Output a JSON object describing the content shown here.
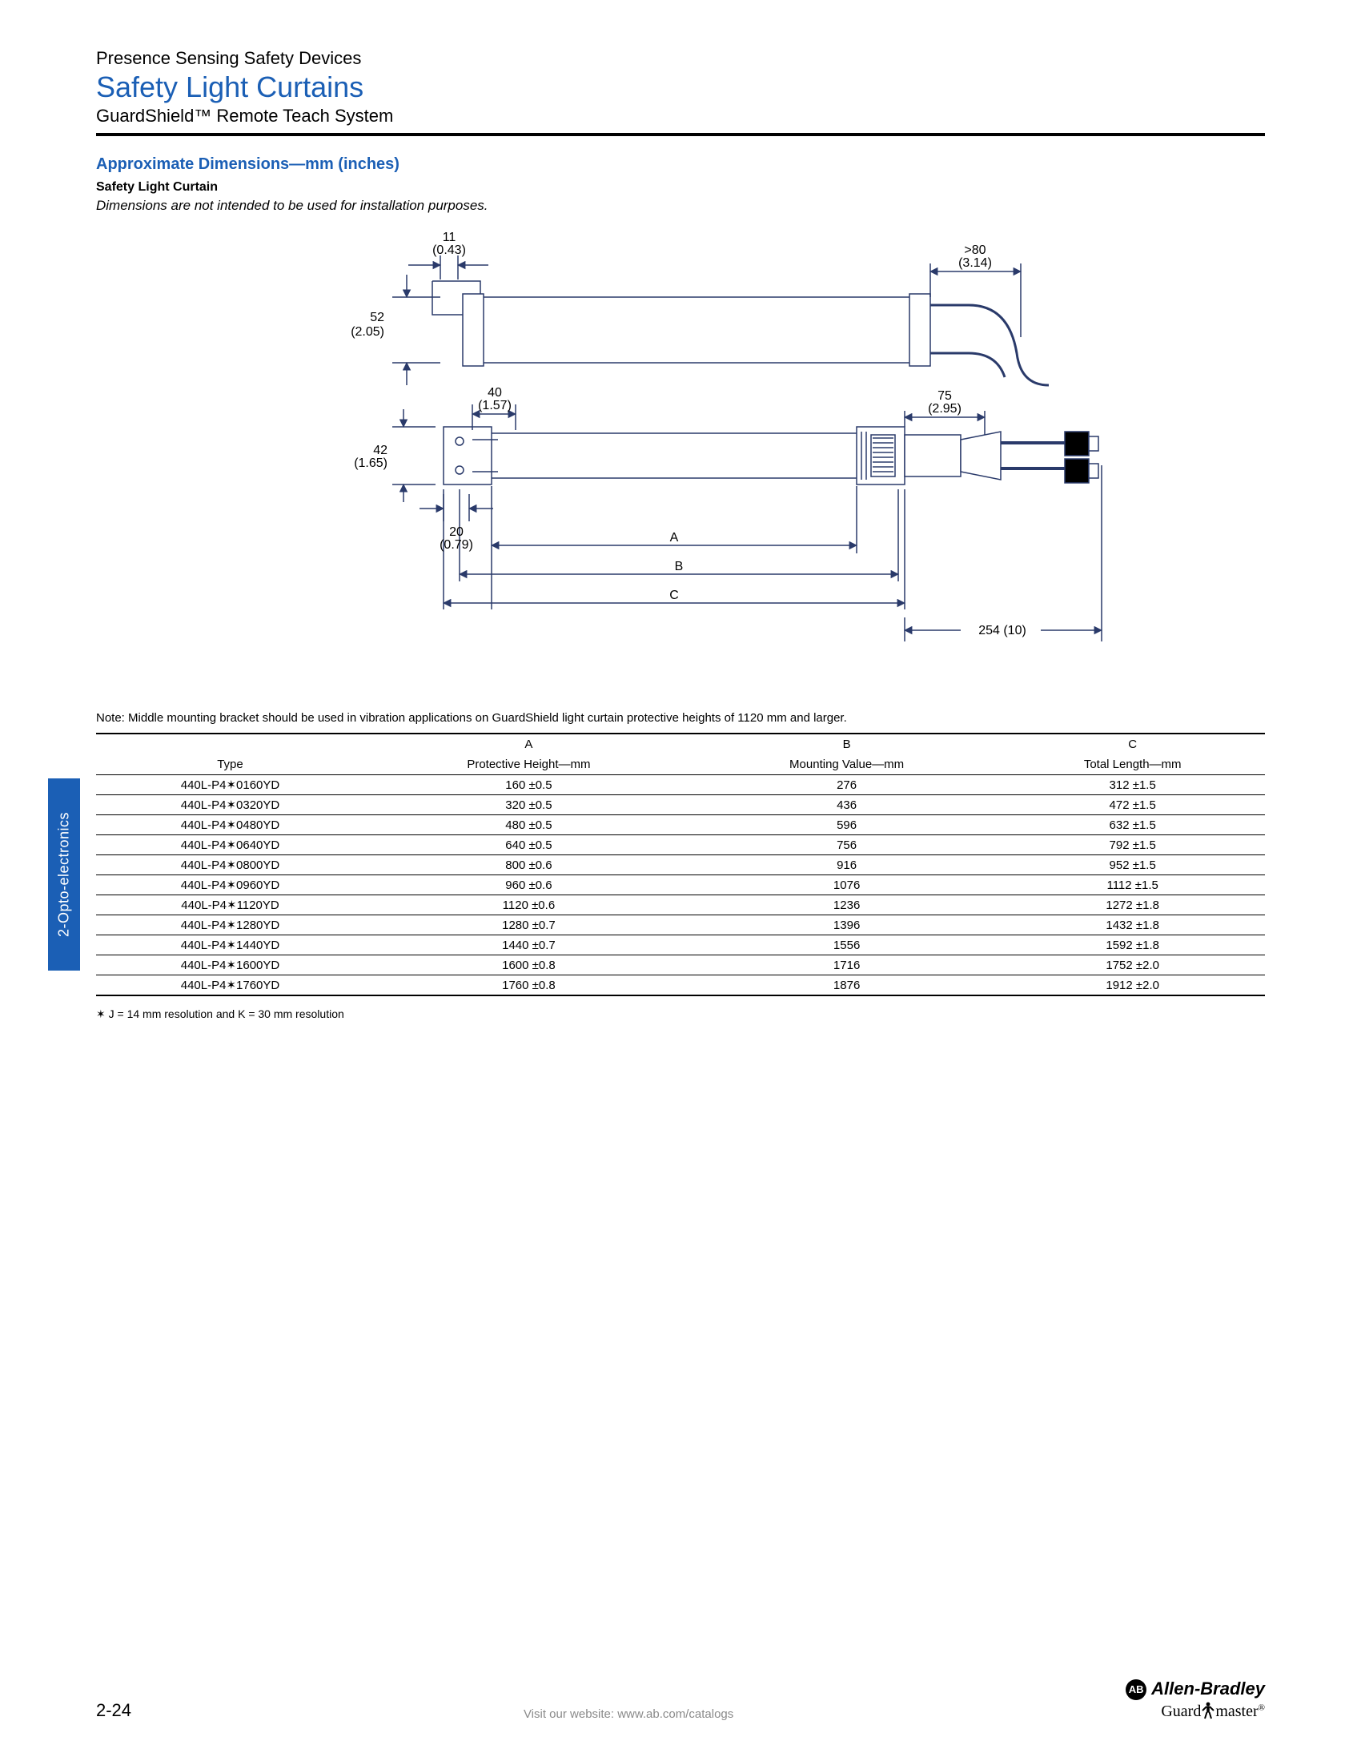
{
  "header": {
    "supertitle": "Presence Sensing Safety Devices",
    "title": "Safety Light Curtains",
    "subtitle": "GuardShield™ Remote Teach System"
  },
  "section": {
    "title": "Approximate Dimensions—mm (inches)",
    "sub": "Safety Light Curtain",
    "note": "Dimensions are not intended to be used for installation purposes."
  },
  "diagram": {
    "dims": {
      "d11": "11",
      "d11_in": "(0.43)",
      "d52": "52",
      "d52_in": "(2.05)",
      "d40": "40",
      "d40_in": "(1.57)",
      "d42": "42",
      "d42_in": "(1.65)",
      "d20": "20",
      "d20_in": "(0.79)",
      "d75": "75",
      "d75_in": "(2.95)",
      "d80": ">80",
      "d80_in": "(3.14)",
      "d254": "254 (10)",
      "labelA": "A",
      "labelB": "B",
      "labelC": "C"
    },
    "stroke": "#2a3a6a",
    "stroke_width": 1.5
  },
  "table": {
    "prenote": "Note:  Middle mounting bracket should be used in vibration applications on GuardShield light curtain protective heights of 1120 mm and larger.",
    "head_top": [
      "",
      "A",
      "B",
      "C"
    ],
    "head_bot": [
      "Type",
      "Protective Height—mm",
      "Mounting Value—mm",
      "Total Length—mm"
    ],
    "rows": [
      [
        "440L-P4✶0160YD",
        "160 ±0.5",
        "276",
        "312 ±1.5"
      ],
      [
        "440L-P4✶0320YD",
        "320 ±0.5",
        "436",
        "472 ±1.5"
      ],
      [
        "440L-P4✶0480YD",
        "480 ±0.5",
        "596",
        "632 ±1.5"
      ],
      [
        "440L-P4✶0640YD",
        "640 ±0.5",
        "756",
        "792 ±1.5"
      ],
      [
        "440L-P4✶0800YD",
        "800 ±0.6",
        "916",
        "952 ±1.5"
      ],
      [
        "440L-P4✶0960YD",
        "960 ±0.6",
        "1076",
        "1112 ±1.5"
      ],
      [
        "440L-P4✶1120YD",
        "1120 ±0.6",
        "1236",
        "1272 ±1.8"
      ],
      [
        "440L-P4✶1280YD",
        "1280 ±0.7",
        "1396",
        "1432 ±1.8"
      ],
      [
        "440L-P4✶1440YD",
        "1440 ±0.7",
        "1556",
        "1592 ±1.8"
      ],
      [
        "440L-P4✶1600YD",
        "1600 ±0.8",
        "1716",
        "1752 ±2.0"
      ],
      [
        "440L-P4✶1760YD",
        "1760 ±0.8",
        "1876",
        "1912 ±2.0"
      ]
    ],
    "footnote": "✶ J = 14 mm resolution and K = 30 mm resolution"
  },
  "sidetab": "2-Opto-electronics",
  "footer": {
    "page": "2-24",
    "website": "Visit our website: www.ab.com/catalogs",
    "brand1": "Allen-Bradley",
    "brand2": "Guard",
    "brand2b": "master",
    "ab_badge": "AB"
  }
}
